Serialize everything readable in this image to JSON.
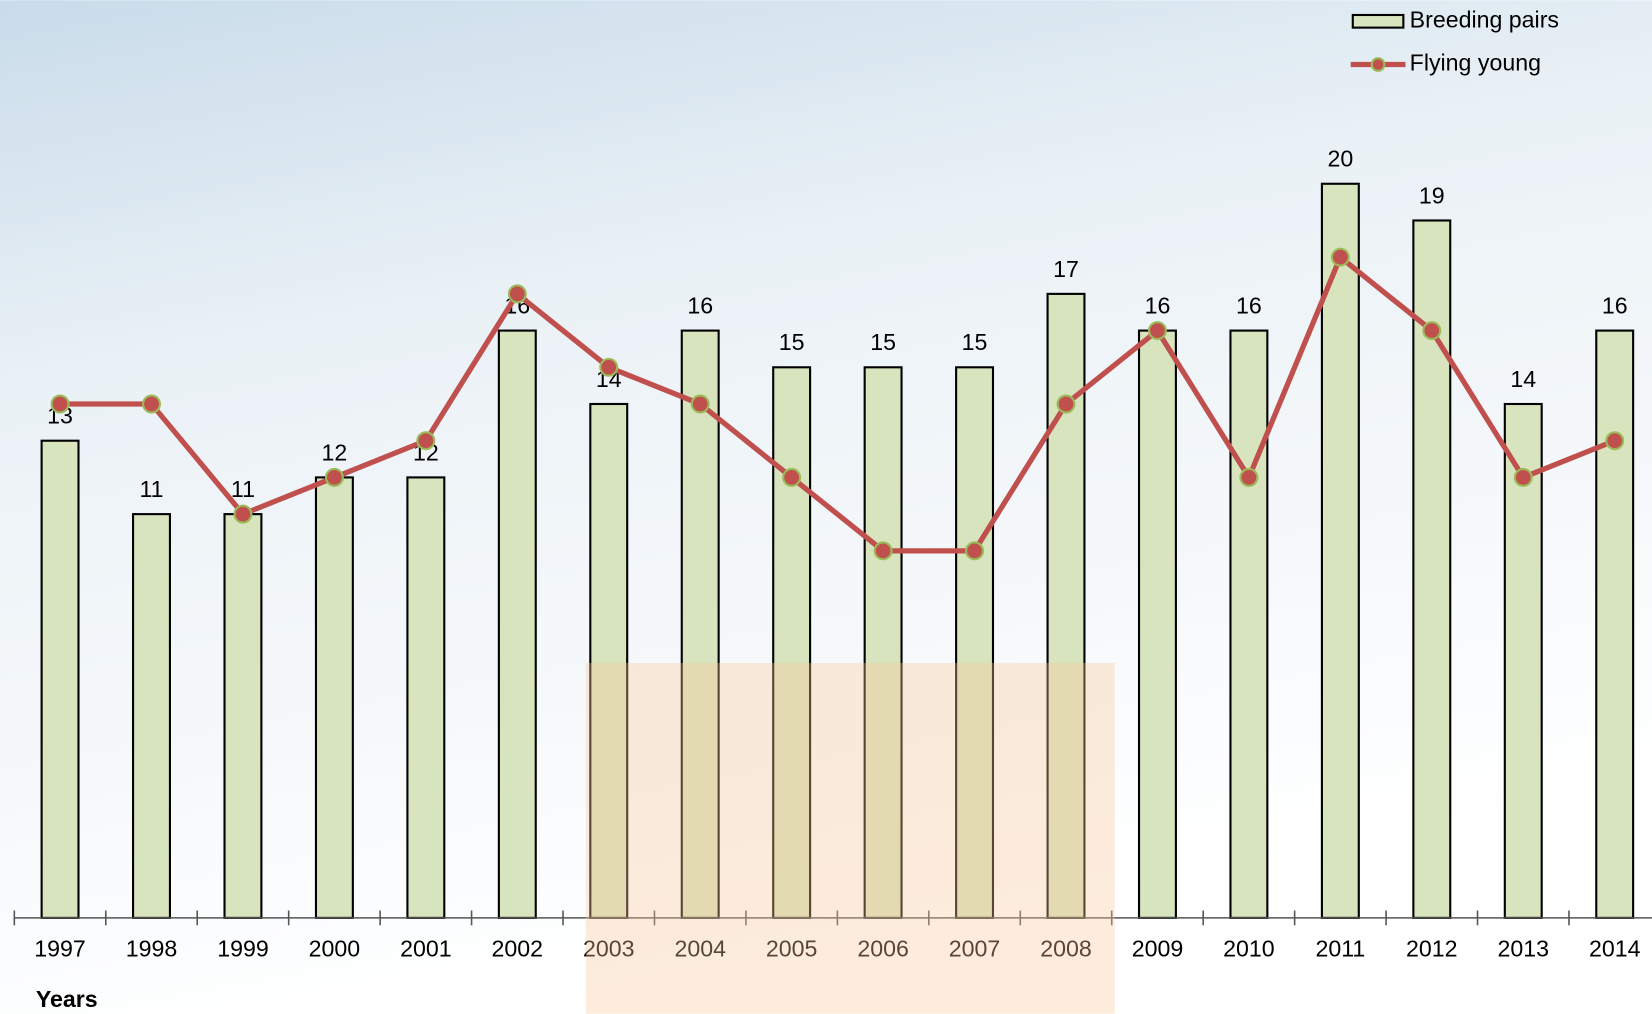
{
  "chart_data": {
    "type": "bar-line",
    "x_label": "Years",
    "categories": [
      "1997",
      "1998",
      "1999",
      "2000",
      "2001",
      "2002",
      "2003",
      "2004",
      "2005",
      "2006",
      "2007",
      "2008",
      "2009",
      "2010",
      "2011",
      "2012",
      "2013",
      "2014"
    ],
    "series": [
      {
        "name": "Breeding pairs",
        "type": "bar",
        "color": "#d7e4bd",
        "values": [
          13,
          11,
          11,
          12,
          12,
          16,
          14,
          16,
          15,
          15,
          15,
          17,
          16,
          16,
          20,
          19,
          14,
          16
        ]
      },
      {
        "name": "Flying young",
        "type": "line",
        "color": "#c0504d",
        "marker_edge": "#9bbb59",
        "values": [
          14,
          14,
          11,
          12,
          13,
          17,
          15,
          14,
          12,
          10,
          10,
          14,
          16,
          12,
          18,
          16,
          12,
          13
        ]
      }
    ],
    "ylim": [
      0,
      25
    ],
    "legend": "upper right"
  }
}
